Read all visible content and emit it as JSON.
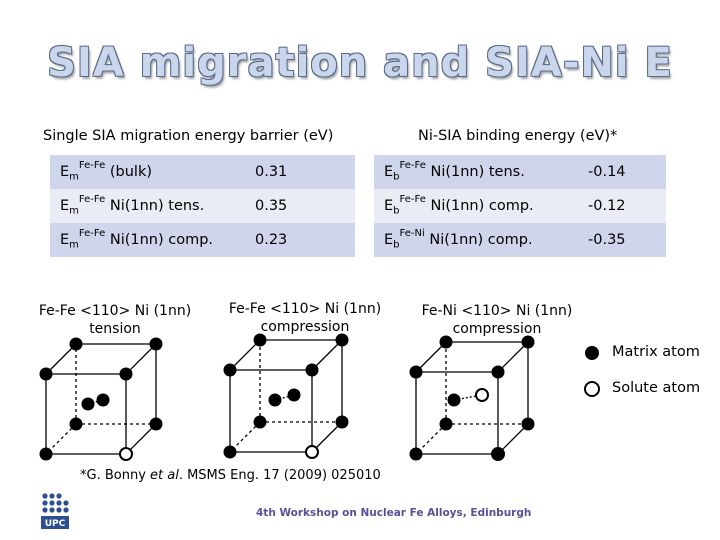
{
  "title": "SIA migration and SIA-Ni E",
  "left_header": "Single SIA migration energy barrier (eV)",
  "right_header": "Ni-SIA binding energy (eV)*",
  "left_table": [
    {
      "sym": "E",
      "sub": "m",
      "sup": "Fe-Fe",
      "label": " (bulk)",
      "value": "0.31"
    },
    {
      "sym": "E",
      "sub": "m",
      "sup": "Fe-Fe",
      "label": " Ni(1nn) tens.",
      "value": "0.35"
    },
    {
      "sym": "E",
      "sub": "m",
      "sup": "Fe-Fe",
      "label": " Ni(1nn) comp.",
      "value": "0.23"
    }
  ],
  "right_table": [
    {
      "sym": "E",
      "sub": "b",
      "sup": "Fe-Fe",
      "label": " Ni(1nn) tens.",
      "value": "-0.14"
    },
    {
      "sym": "E",
      "sub": "b",
      "sup": "Fe-Fe",
      "label": " Ni(1nn) comp.",
      "value": "-0.12"
    },
    {
      "sym": "E",
      "sub": "b",
      "sup": "Fe-Ni",
      "label": "  Ni(1nn) comp.",
      "value": "-0.35"
    }
  ],
  "configs": [
    {
      "line1": "Fe-Fe <110> Ni (1nn)",
      "line2": "tension"
    },
    {
      "line1": "Fe-Fe <110> Ni (1nn)",
      "line2": "compression"
    },
    {
      "line1": "Fe-Ni <110> Ni (1nn)",
      "line2": "compression"
    }
  ],
  "legend": {
    "matrix": "Matrix atom",
    "solute": "Solute atom"
  },
  "reference": {
    "pre": "*G. Bonny ",
    "italic": "et al",
    "post": ". MSMS Eng. 17 (2009) 025010"
  },
  "footer": "4th Workshop on Nuclear Fe Alloys, Edinburgh",
  "logo_text": "UPC",
  "colors": {
    "title_fill": "#c9d6ec",
    "row_dark": "#cfd5ea",
    "row_light": "#e9ebf5",
    "footer": "#5a4f9a",
    "logo": "#2d4f8f"
  }
}
